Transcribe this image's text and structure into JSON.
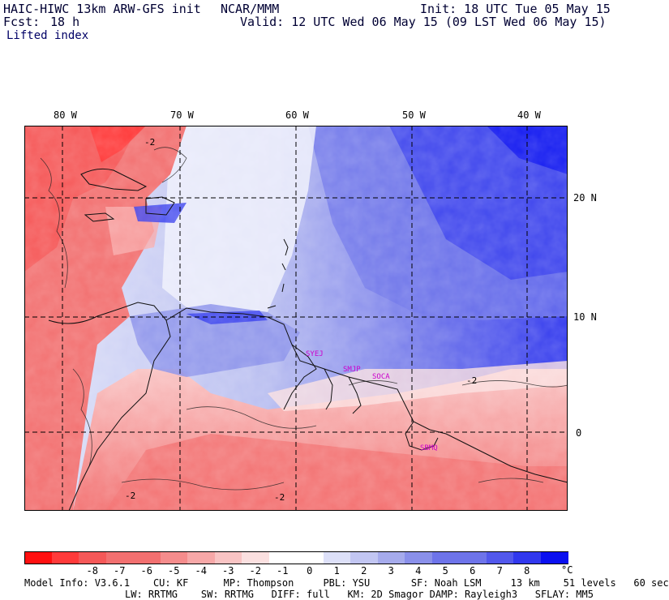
{
  "header": {
    "model": "HAIC-HIWC 13km ARW-GFS init",
    "org": "NCAR/MMM",
    "init": "Init: 18 UTC Tue 05 May 15",
    "fcst_label": "Fcst:",
    "fcst_value": "18 h",
    "valid": "Valid: 12 UTC Wed 06 May 15 (09 LST Wed 06 May 15)",
    "field": "Lifted index"
  },
  "map": {
    "lon_labels": [
      "80 W",
      "70 W",
      "60 W",
      "50 W",
      "40 W"
    ],
    "lat_labels": [
      "20 N",
      "10 N",
      "0"
    ],
    "stations": [
      "SYEJ",
      "SMJP",
      "SOCA",
      "SBMQ"
    ],
    "contour_labels": [
      "-2",
      "-2",
      "-2",
      "-2"
    ]
  },
  "colorbar": {
    "levels": [
      "-8",
      "-7",
      "-6",
      "-5",
      "-4",
      "-3",
      "-2",
      "-1",
      "0",
      "1",
      "2",
      "3",
      "4",
      "5",
      "6",
      "7",
      "8"
    ],
    "unit": "°C",
    "colors": [
      "#ff1010",
      "#ff3a3a",
      "#f55858",
      "#f27070",
      "#f58c8c",
      "#f7a8a8",
      "#f9c4c4",
      "#fbe0e0",
      "#ffffff",
      "#dde0f8",
      "#c2c6f2",
      "#a6abec",
      "#8a90ea",
      "#6e74ea",
      "#5258ec",
      "#3138ee",
      "#0a10f0"
    ]
  },
  "footer": {
    "line1": "Model Info: V3.6.1    CU: KF      MP: Thompson     PBL: YSU       SF: Noah LSM     13 km    51 levels   60 sec",
    "line2": "LW: RRTMG    SW: RRTMG   DIFF: full   KM: 2D Smagor DAMP: Rayleigh3   SFLAY: MM5"
  },
  "colors": {
    "station_label": "#cc00cc",
    "warm": "#f27070",
    "cold": "#3138ee"
  }
}
